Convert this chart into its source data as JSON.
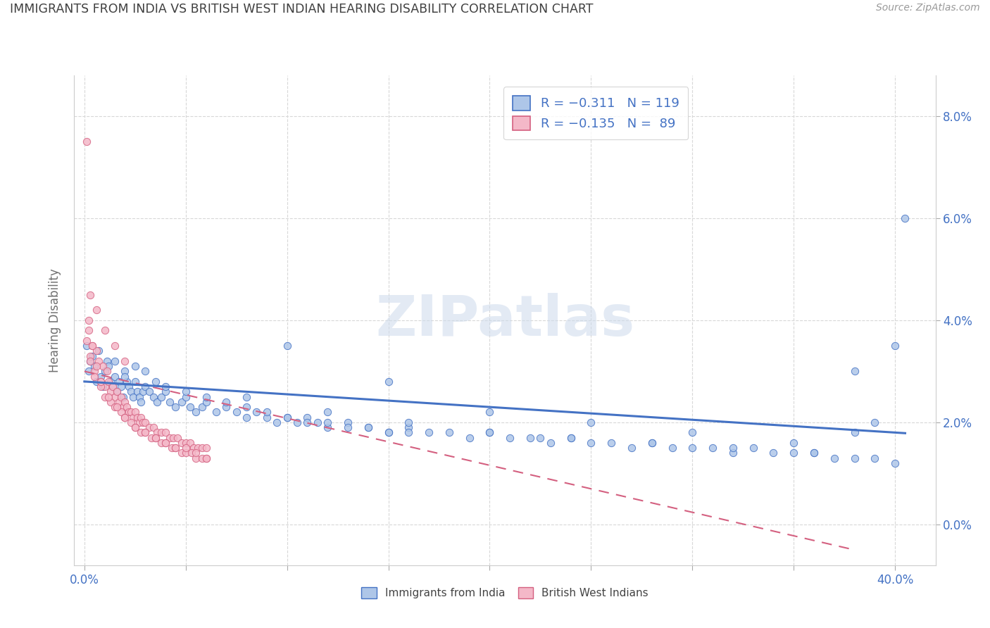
{
  "title": "IMMIGRANTS FROM INDIA VS BRITISH WEST INDIAN HEARING DISABILITY CORRELATION CHART",
  "source": "Source: ZipAtlas.com",
  "ylabel": "Hearing Disability",
  "ytick_vals": [
    0.0,
    0.02,
    0.04,
    0.06,
    0.08
  ],
  "xlim": [
    -0.005,
    0.42
  ],
  "ylim": [
    -0.008,
    0.088
  ],
  "india_color": "#aec6e8",
  "india_edge_color": "#4472c4",
  "bwi_color": "#f4b8c8",
  "bwi_edge_color": "#d46080",
  "india_line_color": "#4472c4",
  "bwi_line_color": "#d46080",
  "axis_color": "#4472c4",
  "text_color": "#404040",
  "watermark": "ZIPatlas",
  "india_scatter_x": [
    0.001,
    0.002,
    0.003,
    0.004,
    0.005,
    0.006,
    0.007,
    0.008,
    0.009,
    0.01,
    0.011,
    0.012,
    0.013,
    0.014,
    0.015,
    0.016,
    0.017,
    0.018,
    0.019,
    0.02,
    0.021,
    0.022,
    0.023,
    0.024,
    0.025,
    0.026,
    0.027,
    0.028,
    0.029,
    0.03,
    0.032,
    0.034,
    0.036,
    0.038,
    0.04,
    0.042,
    0.045,
    0.048,
    0.05,
    0.052,
    0.055,
    0.058,
    0.06,
    0.065,
    0.07,
    0.075,
    0.08,
    0.085,
    0.09,
    0.095,
    0.1,
    0.105,
    0.11,
    0.115,
    0.12,
    0.13,
    0.14,
    0.15,
    0.16,
    0.17,
    0.18,
    0.19,
    0.2,
    0.21,
    0.22,
    0.23,
    0.24,
    0.25,
    0.26,
    0.27,
    0.28,
    0.29,
    0.3,
    0.31,
    0.32,
    0.33,
    0.34,
    0.35,
    0.36,
    0.37,
    0.38,
    0.39,
    0.4,
    0.015,
    0.02,
    0.025,
    0.03,
    0.035,
    0.04,
    0.05,
    0.06,
    0.07,
    0.08,
    0.09,
    0.1,
    0.11,
    0.12,
    0.13,
    0.14,
    0.15,
    0.16,
    0.225,
    0.38,
    0.1,
    0.15,
    0.2,
    0.25,
    0.3,
    0.35,
    0.38,
    0.39,
    0.405,
    0.08,
    0.12,
    0.16,
    0.2,
    0.24,
    0.28,
    0.32,
    0.36,
    0.4
  ],
  "india_scatter_y": [
    0.035,
    0.03,
    0.032,
    0.033,
    0.031,
    0.028,
    0.034,
    0.029,
    0.027,
    0.03,
    0.032,
    0.031,
    0.028,
    0.027,
    0.029,
    0.026,
    0.028,
    0.027,
    0.025,
    0.03,
    0.028,
    0.027,
    0.026,
    0.025,
    0.028,
    0.026,
    0.025,
    0.024,
    0.026,
    0.027,
    0.026,
    0.025,
    0.024,
    0.025,
    0.026,
    0.024,
    0.023,
    0.024,
    0.025,
    0.023,
    0.022,
    0.023,
    0.024,
    0.022,
    0.023,
    0.022,
    0.021,
    0.022,
    0.021,
    0.02,
    0.021,
    0.02,
    0.021,
    0.02,
    0.019,
    0.02,
    0.019,
    0.018,
    0.019,
    0.018,
    0.018,
    0.017,
    0.018,
    0.017,
    0.017,
    0.016,
    0.017,
    0.016,
    0.016,
    0.015,
    0.016,
    0.015,
    0.015,
    0.015,
    0.014,
    0.015,
    0.014,
    0.014,
    0.014,
    0.013,
    0.013,
    0.013,
    0.012,
    0.032,
    0.029,
    0.031,
    0.03,
    0.028,
    0.027,
    0.026,
    0.025,
    0.024,
    0.023,
    0.022,
    0.021,
    0.02,
    0.02,
    0.019,
    0.019,
    0.018,
    0.018,
    0.017,
    0.018,
    0.035,
    0.028,
    0.022,
    0.02,
    0.018,
    0.016,
    0.03,
    0.02,
    0.06,
    0.025,
    0.022,
    0.02,
    0.018,
    0.017,
    0.016,
    0.015,
    0.014,
    0.035
  ],
  "bwi_scatter_x": [
    0.001,
    0.002,
    0.003,
    0.004,
    0.005,
    0.006,
    0.007,
    0.008,
    0.009,
    0.01,
    0.011,
    0.012,
    0.013,
    0.014,
    0.015,
    0.016,
    0.017,
    0.018,
    0.019,
    0.02,
    0.021,
    0.022,
    0.023,
    0.024,
    0.025,
    0.026,
    0.027,
    0.028,
    0.029,
    0.03,
    0.032,
    0.034,
    0.036,
    0.038,
    0.04,
    0.042,
    0.044,
    0.046,
    0.048,
    0.05,
    0.052,
    0.054,
    0.056,
    0.058,
    0.06,
    0.003,
    0.005,
    0.008,
    0.01,
    0.013,
    0.015,
    0.018,
    0.02,
    0.023,
    0.025,
    0.028,
    0.03,
    0.033,
    0.035,
    0.038,
    0.04,
    0.043,
    0.045,
    0.048,
    0.05,
    0.053,
    0.055,
    0.058,
    0.06,
    0.002,
    0.004,
    0.006,
    0.008,
    0.012,
    0.016,
    0.02,
    0.025,
    0.03,
    0.035,
    0.04,
    0.045,
    0.05,
    0.055,
    0.06,
    0.001,
    0.003,
    0.006,
    0.01,
    0.015,
    0.02
  ],
  "bwi_scatter_y": [
    0.036,
    0.04,
    0.033,
    0.035,
    0.03,
    0.034,
    0.032,
    0.028,
    0.031,
    0.027,
    0.03,
    0.028,
    0.026,
    0.027,
    0.025,
    0.026,
    0.024,
    0.025,
    0.023,
    0.024,
    0.023,
    0.022,
    0.022,
    0.021,
    0.022,
    0.021,
    0.02,
    0.021,
    0.02,
    0.02,
    0.019,
    0.019,
    0.018,
    0.018,
    0.018,
    0.017,
    0.017,
    0.017,
    0.016,
    0.016,
    0.016,
    0.015,
    0.015,
    0.015,
    0.015,
    0.032,
    0.029,
    0.027,
    0.025,
    0.024,
    0.023,
    0.022,
    0.021,
    0.02,
    0.019,
    0.018,
    0.018,
    0.017,
    0.017,
    0.016,
    0.016,
    0.015,
    0.015,
    0.014,
    0.014,
    0.014,
    0.013,
    0.013,
    0.013,
    0.038,
    0.035,
    0.031,
    0.028,
    0.025,
    0.023,
    0.021,
    0.019,
    0.018,
    0.017,
    0.016,
    0.015,
    0.015,
    0.014,
    0.013,
    0.075,
    0.045,
    0.042,
    0.038,
    0.035,
    0.032
  ]
}
